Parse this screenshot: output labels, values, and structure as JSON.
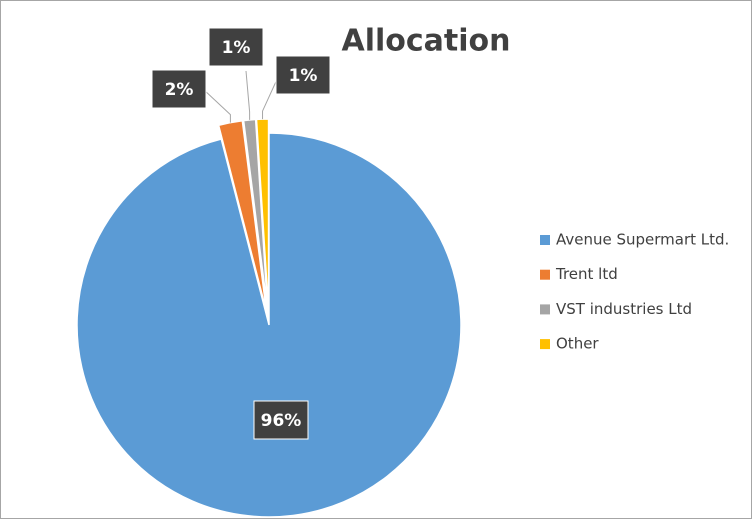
{
  "chart_data": {
    "type": "pie",
    "title": "Allocation",
    "categories": [
      "Avenue Supermart Ltd.",
      "Trent ltd",
      "VST industries Ltd",
      "Other"
    ],
    "values": [
      96,
      2,
      1,
      1
    ],
    "value_labels": [
      "96%",
      "2%",
      "1%",
      "1%"
    ],
    "colors": [
      "#5b9bd5",
      "#ed7d31",
      "#a5a5a5",
      "#ffc000"
    ],
    "legend": "right"
  }
}
